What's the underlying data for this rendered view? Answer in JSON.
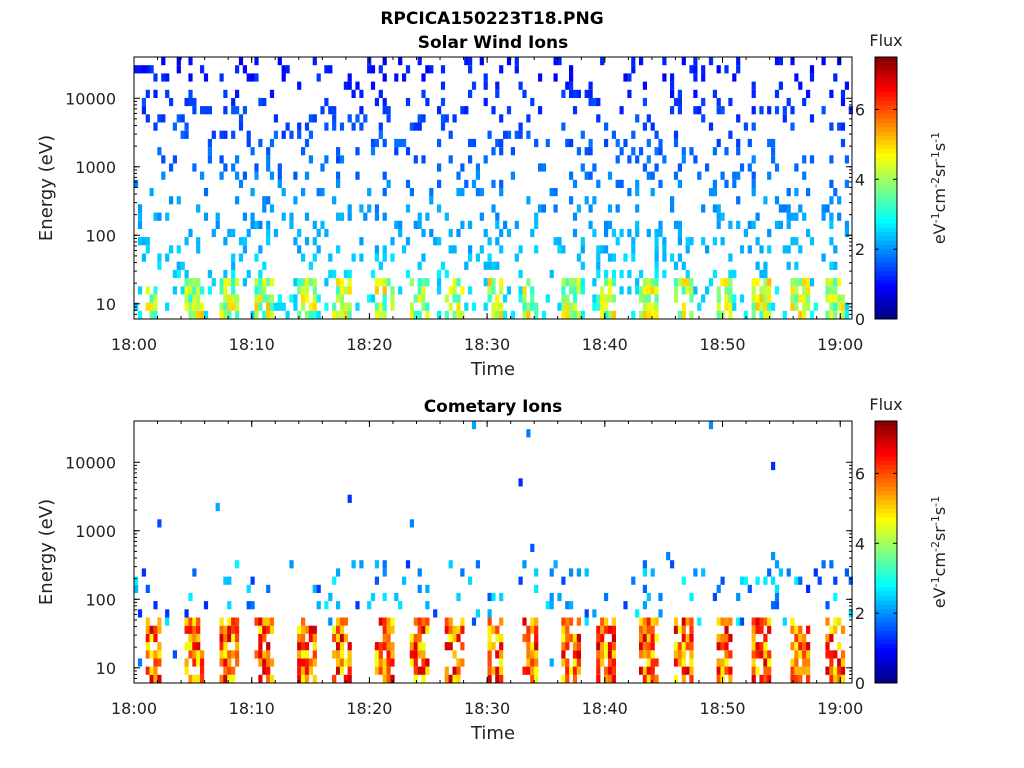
{
  "figure": {
    "title": "RPCICA150223T18.PNG"
  },
  "chart_data": [
    {
      "type": "heatmap",
      "title": "Solar Wind Ions",
      "xlabel": "Time",
      "ylabel": "Energy (eV)",
      "y_scale": "log",
      "xlim": [
        "18:00",
        "19:01"
      ],
      "ylim": [
        6,
        40000
      ],
      "x_ticks": [
        "18:00",
        "18:10",
        "18:20",
        "18:30",
        "18:40",
        "18:50",
        "19:00"
      ],
      "y_ticks": [
        "10",
        "100",
        "1000",
        "10000"
      ],
      "colorbar": {
        "label": "Flux",
        "unit_label": "eV-1cm-2sr-1s-1",
        "range": [
          0,
          7.5
        ],
        "ticks": [
          "0",
          "2",
          "4",
          "6"
        ],
        "colormap": "jet"
      },
      "pattern": {
        "bursts_minutes": [
          1.5,
          5.0,
          8.0,
          11.0,
          14.5,
          17.5,
          21.0,
          24.0,
          27.0,
          30.5,
          33.5,
          37.0,
          40.0,
          43.5,
          46.5,
          50.0,
          53.0,
          56.5,
          59.5
        ],
        "burst_energy_range_ev": [
          6,
          25
        ],
        "burst_flux_range": [
          3.0,
          5.2
        ],
        "background_flux_range": [
          1.0,
          2.8
        ],
        "background_energy_range_ev": [
          6,
          40000
        ],
        "grid": "off"
      }
    },
    {
      "type": "heatmap",
      "title": "Cometary Ions",
      "xlabel": "Time",
      "ylabel": "Energy (eV)",
      "y_scale": "log",
      "xlim": [
        "18:00",
        "19:01"
      ],
      "ylim": [
        6,
        40000
      ],
      "x_ticks": [
        "18:00",
        "18:10",
        "18:20",
        "18:30",
        "18:40",
        "18:50",
        "19:00"
      ],
      "y_ticks": [
        "10",
        "100",
        "1000",
        "10000"
      ],
      "colorbar": {
        "label": "Flux",
        "unit_label": "eV-1cm-2sr-1s-1",
        "range": [
          0,
          7.5
        ],
        "ticks": [
          "0",
          "2",
          "4",
          "6"
        ],
        "colormap": "jet"
      },
      "pattern": {
        "bursts_minutes": [
          1.5,
          5.0,
          8.0,
          11.0,
          14.5,
          17.5,
          21.0,
          24.0,
          27.0,
          30.5,
          33.5,
          37.0,
          40.0,
          43.5,
          46.5,
          50.0,
          53.0,
          56.5,
          59.5
        ],
        "burst_energy_range_ev": [
          6,
          50
        ],
        "burst_flux_range": [
          4.5,
          7.0
        ],
        "background_flux_range": [
          1.2,
          2.8
        ],
        "background_energy_range_ev": [
          40,
          400
        ],
        "grid": "off"
      }
    }
  ]
}
